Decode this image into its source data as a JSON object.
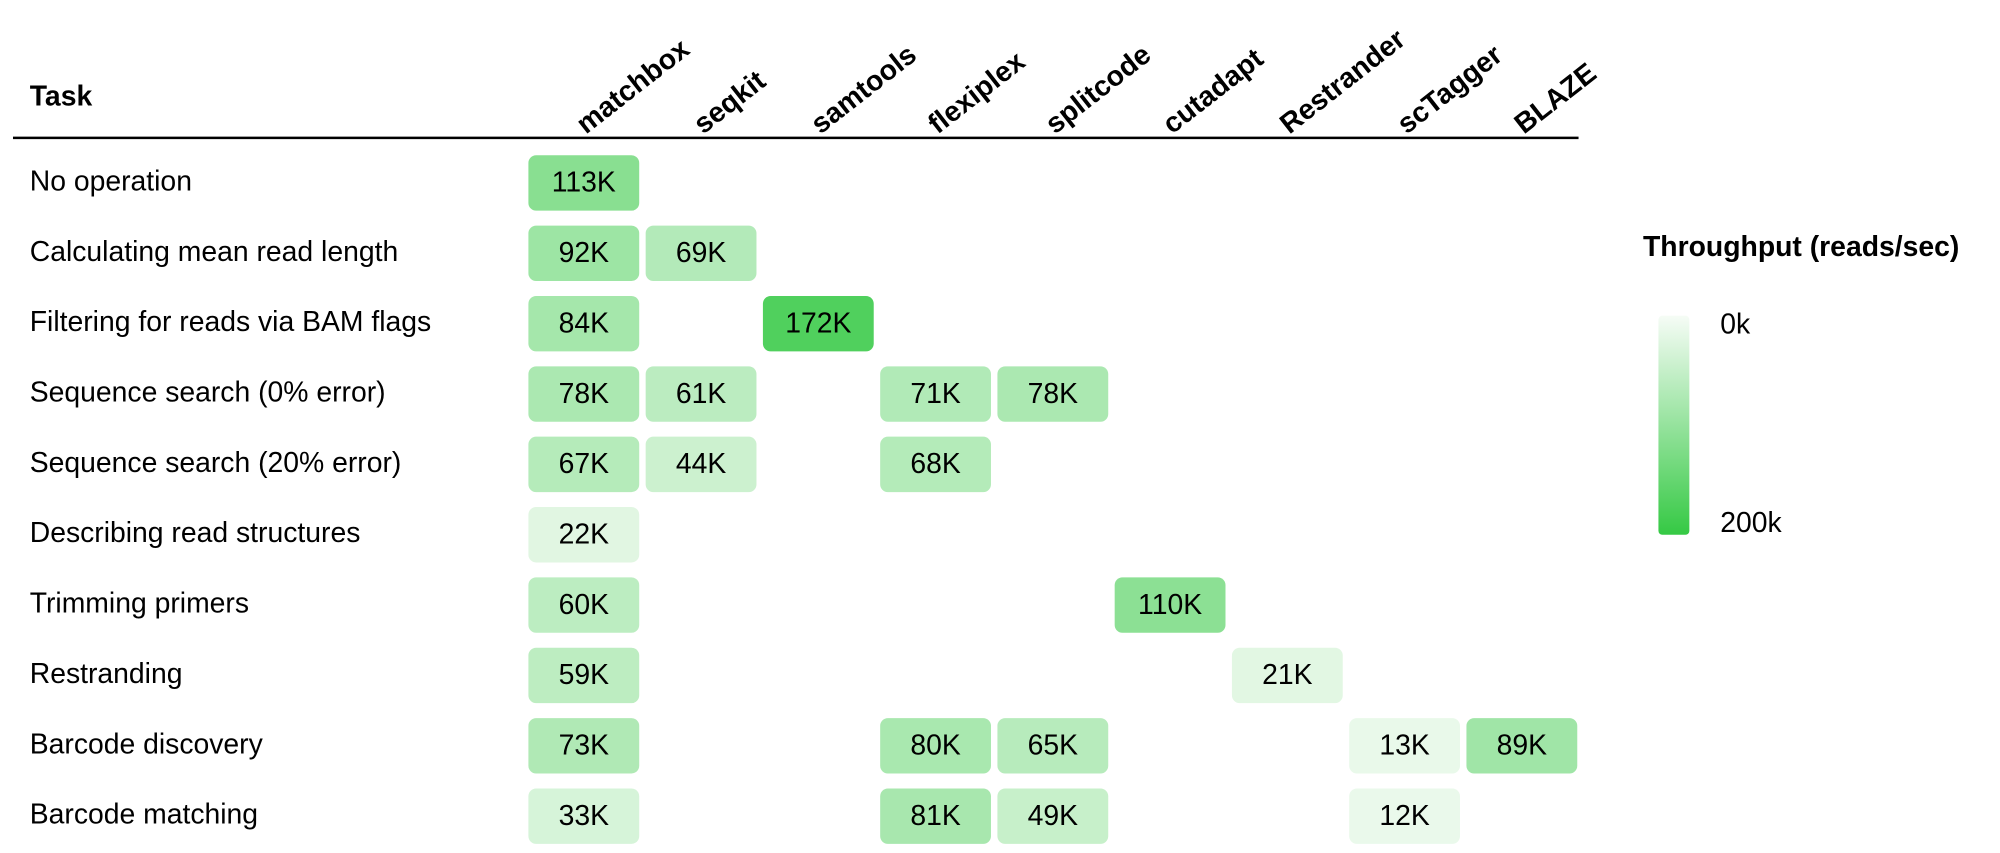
{
  "chart_data": {
    "type": "heatmap",
    "row_header": "Task",
    "columns": [
      "matchbox",
      "seqkit",
      "samtools",
      "flexiplex",
      "splitcode",
      "cutadapt",
      "Restrander",
      "scTagger",
      "BLAZE"
    ],
    "rows": [
      "No operation",
      "Calculating mean read length",
      "Filtering for reads via BAM flags",
      "Sequence search (0% error)",
      "Sequence search (20% error)",
      "Describing read structures",
      "Trimming primers",
      "Restranding",
      "Barcode discovery",
      "Barcode matching"
    ],
    "values": [
      [
        113000,
        null,
        null,
        null,
        null,
        null,
        null,
        null,
        null
      ],
      [
        92000,
        69000,
        null,
        null,
        null,
        null,
        null,
        null,
        null
      ],
      [
        84000,
        null,
        172000,
        null,
        null,
        null,
        null,
        null,
        null
      ],
      [
        78000,
        61000,
        null,
        71000,
        78000,
        null,
        null,
        null,
        null
      ],
      [
        67000,
        44000,
        null,
        68000,
        null,
        null,
        null,
        null,
        null
      ],
      [
        22000,
        null,
        null,
        null,
        null,
        null,
        null,
        null,
        null
      ],
      [
        60000,
        null,
        null,
        null,
        null,
        110000,
        null,
        null,
        null
      ],
      [
        59000,
        null,
        null,
        null,
        null,
        null,
        21000,
        null,
        null
      ],
      [
        73000,
        null,
        null,
        80000,
        65000,
        null,
        null,
        13000,
        89000
      ],
      [
        33000,
        null,
        null,
        81000,
        49000,
        null,
        null,
        12000,
        null
      ]
    ],
    "value_labels": [
      [
        "113K",
        null,
        null,
        null,
        null,
        null,
        null,
        null,
        null
      ],
      [
        "92K",
        "69K",
        null,
        null,
        null,
        null,
        null,
        null,
        null
      ],
      [
        "84K",
        null,
        "172K",
        null,
        null,
        null,
        null,
        null,
        null
      ],
      [
        "78K",
        "61K",
        null,
        "71K",
        "78K",
        null,
        null,
        null,
        null
      ],
      [
        "67K",
        "44K",
        null,
        "68K",
        null,
        null,
        null,
        null,
        null
      ],
      [
        "22K",
        null,
        null,
        null,
        null,
        null,
        null,
        null,
        null
      ],
      [
        "60K",
        null,
        null,
        null,
        null,
        "110K",
        null,
        null,
        null
      ],
      [
        "59K",
        null,
        null,
        null,
        null,
        null,
        "21K",
        null,
        null
      ],
      [
        "73K",
        null,
        null,
        "80K",
        "65K",
        null,
        null,
        "13K",
        "89K"
      ],
      [
        "33K",
        null,
        null,
        "81K",
        "49K",
        null,
        null,
        "12K",
        null
      ]
    ],
    "colorbar_title": "Throughput (reads/sec)",
    "zlim": [
      0,
      200000
    ],
    "zticks": [
      {
        "value": 0,
        "label": "0k"
      },
      {
        "value": 200000,
        "label": "200k"
      }
    ],
    "colorscale": [
      "#f6fcf6",
      "#35c944"
    ]
  }
}
